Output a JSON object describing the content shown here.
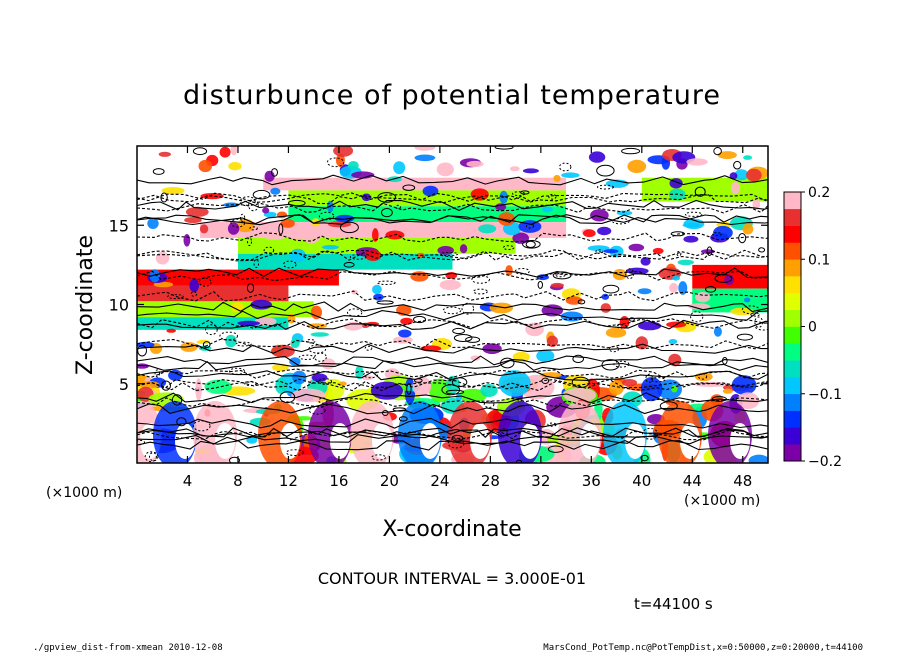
{
  "chart_data": {
    "type": "heatmap",
    "title": "disturbunce of potential temperature",
    "xlabel": "X-coordinate",
    "ylabel": "Z-coordinate",
    "x_unit_left": "(×1000 m)",
    "x_unit_right": "(×1000 m)",
    "xlim": [
      0,
      50
    ],
    "ylim": [
      0,
      20
    ],
    "x_ticks": [
      4,
      8,
      12,
      16,
      20,
      24,
      28,
      32,
      36,
      40,
      44,
      48
    ],
    "y_ticks": [
      5,
      10,
      15
    ],
    "colorbar": {
      "range": [
        -0.2,
        0.2
      ],
      "ticks": [
        {
          "value": 0.2,
          "label": "0.2"
        },
        {
          "value": 0.1,
          "label": "0.1"
        },
        {
          "value": 0,
          "label": "0"
        },
        {
          "value": -0.1,
          "label": "−0.1"
        },
        {
          "value": -0.2,
          "label": "−0.2"
        }
      ],
      "colors": [
        "#7b00a8",
        "#3a00d6",
        "#0030ff",
        "#0080ff",
        "#00c8ff",
        "#00e0c0",
        "#00ff80",
        "#40ff00",
        "#a0ff00",
        "#e0ff00",
        "#ffe000",
        "#ffa000",
        "#ff5000",
        "#ff0000",
        "#e83030",
        "#ffb8c8"
      ]
    },
    "bands": [
      {
        "z0": 17.2,
        "z1": 18.0,
        "x0": 10,
        "x1": 34,
        "value": 0.2
      },
      {
        "z0": 16.2,
        "z1": 17.2,
        "x0": 12,
        "x1": 34,
        "value": 0.0
      },
      {
        "z0": 15.2,
        "z1": 16.2,
        "x0": 12,
        "x1": 34,
        "value": -0.05
      },
      {
        "z0": 14.2,
        "z1": 15.2,
        "x0": 5,
        "x1": 34,
        "value": 0.18
      },
      {
        "z0": 13.2,
        "z1": 14.2,
        "x0": 8,
        "x1": 30,
        "value": 0.02
      },
      {
        "z0": 12.2,
        "z1": 13.2,
        "x0": 8,
        "x1": 25,
        "value": -0.06
      },
      {
        "z0": 11.2,
        "z1": 12.2,
        "x0": 0,
        "x1": 16,
        "value": 0.13
      },
      {
        "z0": 10.2,
        "z1": 11.2,
        "x0": 0,
        "x1": 12,
        "value": 0.16
      },
      {
        "z0": 9.2,
        "z1": 10.2,
        "x0": 0,
        "x1": 14,
        "value": 0.0
      },
      {
        "z0": 8.4,
        "z1": 9.2,
        "x0": 0,
        "x1": 12,
        "value": -0.07
      },
      {
        "z0": 16.5,
        "z1": 18.0,
        "x0": 40,
        "x1": 50,
        "value": 0.01
      },
      {
        "z0": 11.0,
        "z1": 12.5,
        "x0": 44,
        "x1": 50,
        "value": 0.15
      },
      {
        "z0": 9.5,
        "z1": 11.0,
        "x0": 44,
        "x1": 50,
        "value": -0.03
      }
    ],
    "contour_interval_text": "CONTOUR INTERVAL = 3.000E-01",
    "time_text": "t=44100 s"
  },
  "footer": {
    "left": "./gpview_dist-from-xmean  2010-12-08",
    "right": "MarsCond_PotTemp.nc@PotTempDist,x=0:50000,z=0:20000,t=44100"
  }
}
